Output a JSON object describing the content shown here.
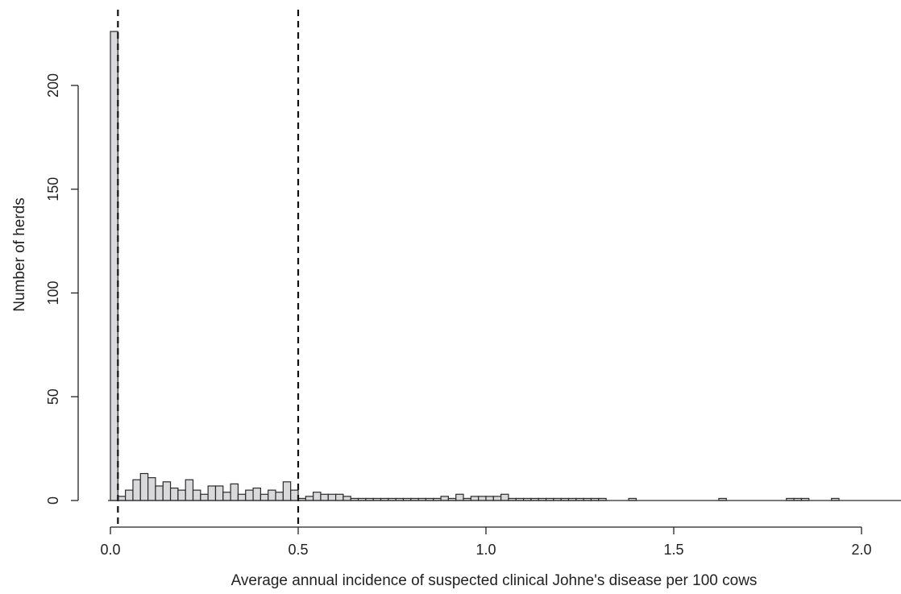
{
  "chart_data": {
    "type": "bar",
    "title": "",
    "xlabel": "Average annual incidence of suspected clinical Johne's disease per 100 cows",
    "ylabel": "Number of herds",
    "xlim": [
      0,
      2.1
    ],
    "ylim": [
      0,
      230
    ],
    "x_ticks": [
      {
        "value": 0.0,
        "label": "0.0"
      },
      {
        "value": 0.5,
        "label": "0.5"
      },
      {
        "value": 1.0,
        "label": "1.0"
      },
      {
        "value": 1.5,
        "label": "1.5"
      },
      {
        "value": 2.0,
        "label": "2.0"
      }
    ],
    "y_ticks": [
      {
        "value": 0,
        "label": "0"
      },
      {
        "value": 50,
        "label": "50"
      },
      {
        "value": 100,
        "label": "100"
      },
      {
        "value": 150,
        "label": "150"
      },
      {
        "value": 200,
        "label": "200"
      }
    ],
    "bin_width": 0.02,
    "bin_starts": [
      0.0,
      0.02,
      0.04,
      0.06,
      0.08,
      0.1,
      0.12,
      0.14,
      0.16,
      0.18,
      0.2,
      0.22,
      0.24,
      0.26,
      0.28,
      0.3,
      0.32,
      0.34,
      0.36,
      0.38,
      0.4,
      0.42,
      0.44,
      0.46,
      0.48,
      0.5,
      0.52,
      0.54,
      0.56,
      0.58,
      0.6,
      0.62,
      0.64,
      0.66,
      0.68,
      0.7,
      0.72,
      0.74,
      0.76,
      0.78,
      0.8,
      0.82,
      0.84,
      0.86,
      0.88,
      0.9,
      0.92,
      0.94,
      0.96,
      0.98,
      1.0,
      1.02,
      1.04,
      1.06,
      1.08,
      1.1,
      1.12,
      1.14,
      1.16,
      1.18,
      1.2,
      1.22,
      1.24,
      1.26,
      1.28,
      1.3,
      1.38,
      1.62,
      1.8,
      1.82,
      1.84,
      1.92
    ],
    "counts": [
      226,
      2,
      5,
      10,
      13,
      11,
      7,
      9,
      6,
      5,
      10,
      5,
      3,
      7,
      7,
      4,
      8,
      3,
      5,
      6,
      3,
      5,
      4,
      9,
      5,
      1,
      2,
      4,
      3,
      3,
      3,
      2,
      1,
      1,
      1,
      1,
      1,
      1,
      1,
      1,
      1,
      1,
      1,
      1,
      2,
      1,
      3,
      1,
      2,
      2,
      2,
      2,
      3,
      1,
      1,
      1,
      1,
      1,
      1,
      1,
      1,
      1,
      1,
      1,
      1,
      1,
      1,
      1,
      1,
      1,
      1,
      1
    ],
    "bar_color": "#d9d9dc",
    "reference_lines": [
      {
        "x": 0.02,
        "style": "dashed"
      },
      {
        "x": 0.5,
        "style": "dashed"
      }
    ],
    "grid": false,
    "legend": "none"
  }
}
